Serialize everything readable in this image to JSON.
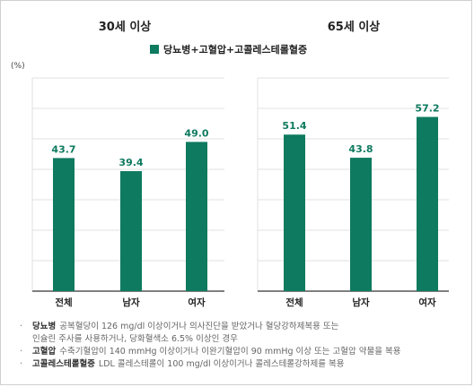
{
  "chart_data": {
    "type": "bar",
    "legend": "당뇨병+고혈압+고콜레스테롤혈증",
    "y_unit": "(%)",
    "ylim": [
      0,
      70
    ],
    "colors": {
      "bar": "#0e7a5f",
      "label": "#0e7a5f"
    },
    "panels": [
      {
        "title": "30세 이상",
        "categories": [
          "전체",
          "남자",
          "여자"
        ],
        "values": [
          43.7,
          39.4,
          49.0
        ],
        "labels": [
          "43.7",
          "39.4",
          "49.0"
        ]
      },
      {
        "title": "65세 이상",
        "categories": [
          "전체",
          "남자",
          "여자"
        ],
        "values": [
          51.4,
          43.8,
          57.2
        ],
        "labels": [
          "51.4",
          "43.8",
          "57.2"
        ]
      }
    ]
  },
  "notes": [
    {
      "term": "당뇨병",
      "text": "공복혈당이 126 mg/dl 이상이거나 의사진단을 받았거나 혈당강하제복용 또는",
      "cont": "인슐린 주사를 사용하거나, 당화혈색소 6.5% 이상인 경우"
    },
    {
      "term": "고혈압",
      "text": "수축기혈압이 140 mmHg 이상이거나 이완기혈압이 90 mmHg 이상 또는 고혈압 약물을 복용"
    },
    {
      "term": "고콜레스테롤혈증",
      "text": "LDL 콜레스테롤이 100 mg/dl 이상이거나 콜레스테롤강하제를 복용"
    }
  ]
}
